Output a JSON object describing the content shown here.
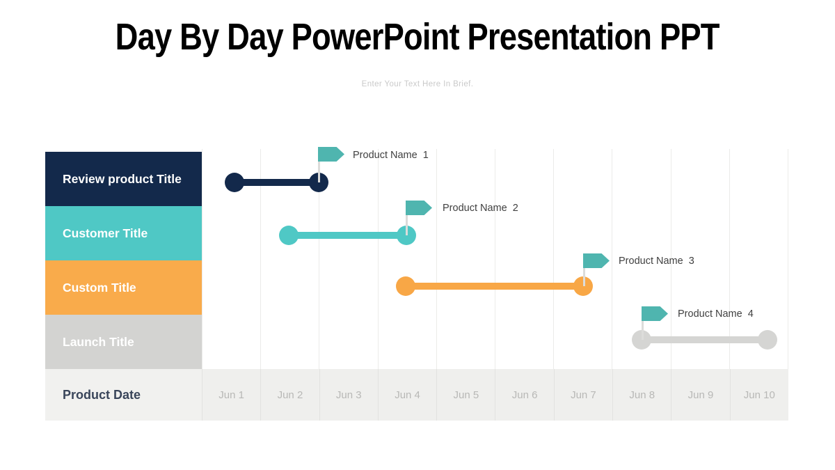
{
  "slide": {
    "title": "Day By Day PowerPoint Presentation PPT",
    "subtitle": "Enter Your Text Here In Brief."
  },
  "timeline": {
    "rows": [
      {
        "label": "Review product Title",
        "color": "#13294b"
      },
      {
        "label": "Customer Title",
        "color": "#4fc8c5"
      },
      {
        "label": "Custom Title",
        "color": "#f9ab4b"
      },
      {
        "label": "Launch Title",
        "color": "#d3d3d1"
      }
    ],
    "date_row_label": "Product Date",
    "dates": [
      "Jun 1",
      "Jun 2",
      "Jun 3",
      "Jun 4",
      "Jun 5",
      "Jun 6",
      "Jun 7",
      "Jun 8",
      "Jun 9",
      "Jun 10"
    ]
  },
  "milestones": [
    {
      "label": "Product Name  1"
    },
    {
      "label": "Product Name  2"
    },
    {
      "label": "Product Name  3"
    },
    {
      "label": "Product Name  4"
    }
  ],
  "palette": {
    "navy": "#13294b",
    "teal": "#4fc8c5",
    "orange": "#f8a746",
    "gray_bar": "#d5d5d3",
    "flag_teal": "#4fb5af",
    "flag_pole": "#dcdcda",
    "date_row_bg": "#efefed",
    "date_text": "#b8b8b6",
    "date_label_text": "#39455a",
    "gridline": "#ebebe9",
    "milestone_text": "#404040",
    "subtitle_text": "#c9c9c9",
    "title_text": "#000000"
  },
  "chart_data": {
    "type": "bar",
    "subtype": "gantt-timeline",
    "title": "Day By Day PowerPoint Presentation PPT",
    "xlabel": "Product Date",
    "x": [
      "Jun 1",
      "Jun 2",
      "Jun 3",
      "Jun 4",
      "Jun 5",
      "Jun 6",
      "Jun 7",
      "Jun 8",
      "Jun 9",
      "Jun 10"
    ],
    "x_range_days": [
      1,
      10
    ],
    "grid": true,
    "legend": false,
    "series": [
      {
        "name": "Review product Title",
        "start_day": 1,
        "end_day": 2.5,
        "color": "#13294b",
        "flag_label": "Product Name  1",
        "flag_at_day": 2.5
      },
      {
        "name": "Customer Title",
        "start_day": 2,
        "end_day": 4,
        "color": "#4fc8c5",
        "flag_label": "Product Name  2",
        "flag_at_day": 4
      },
      {
        "name": "Custom Title",
        "start_day": 4,
        "end_day": 7,
        "color": "#f8a746",
        "flag_label": "Product Name  3",
        "flag_at_day": 7
      },
      {
        "name": "Launch Title",
        "start_day": 8,
        "end_day": 10.2,
        "color": "#d5d5d3",
        "flag_label": "Product Name  4",
        "flag_at_day": 8
      }
    ],
    "flag_color": "#4fb5af",
    "bar_style": "rounded line with circular endpoint dots"
  }
}
